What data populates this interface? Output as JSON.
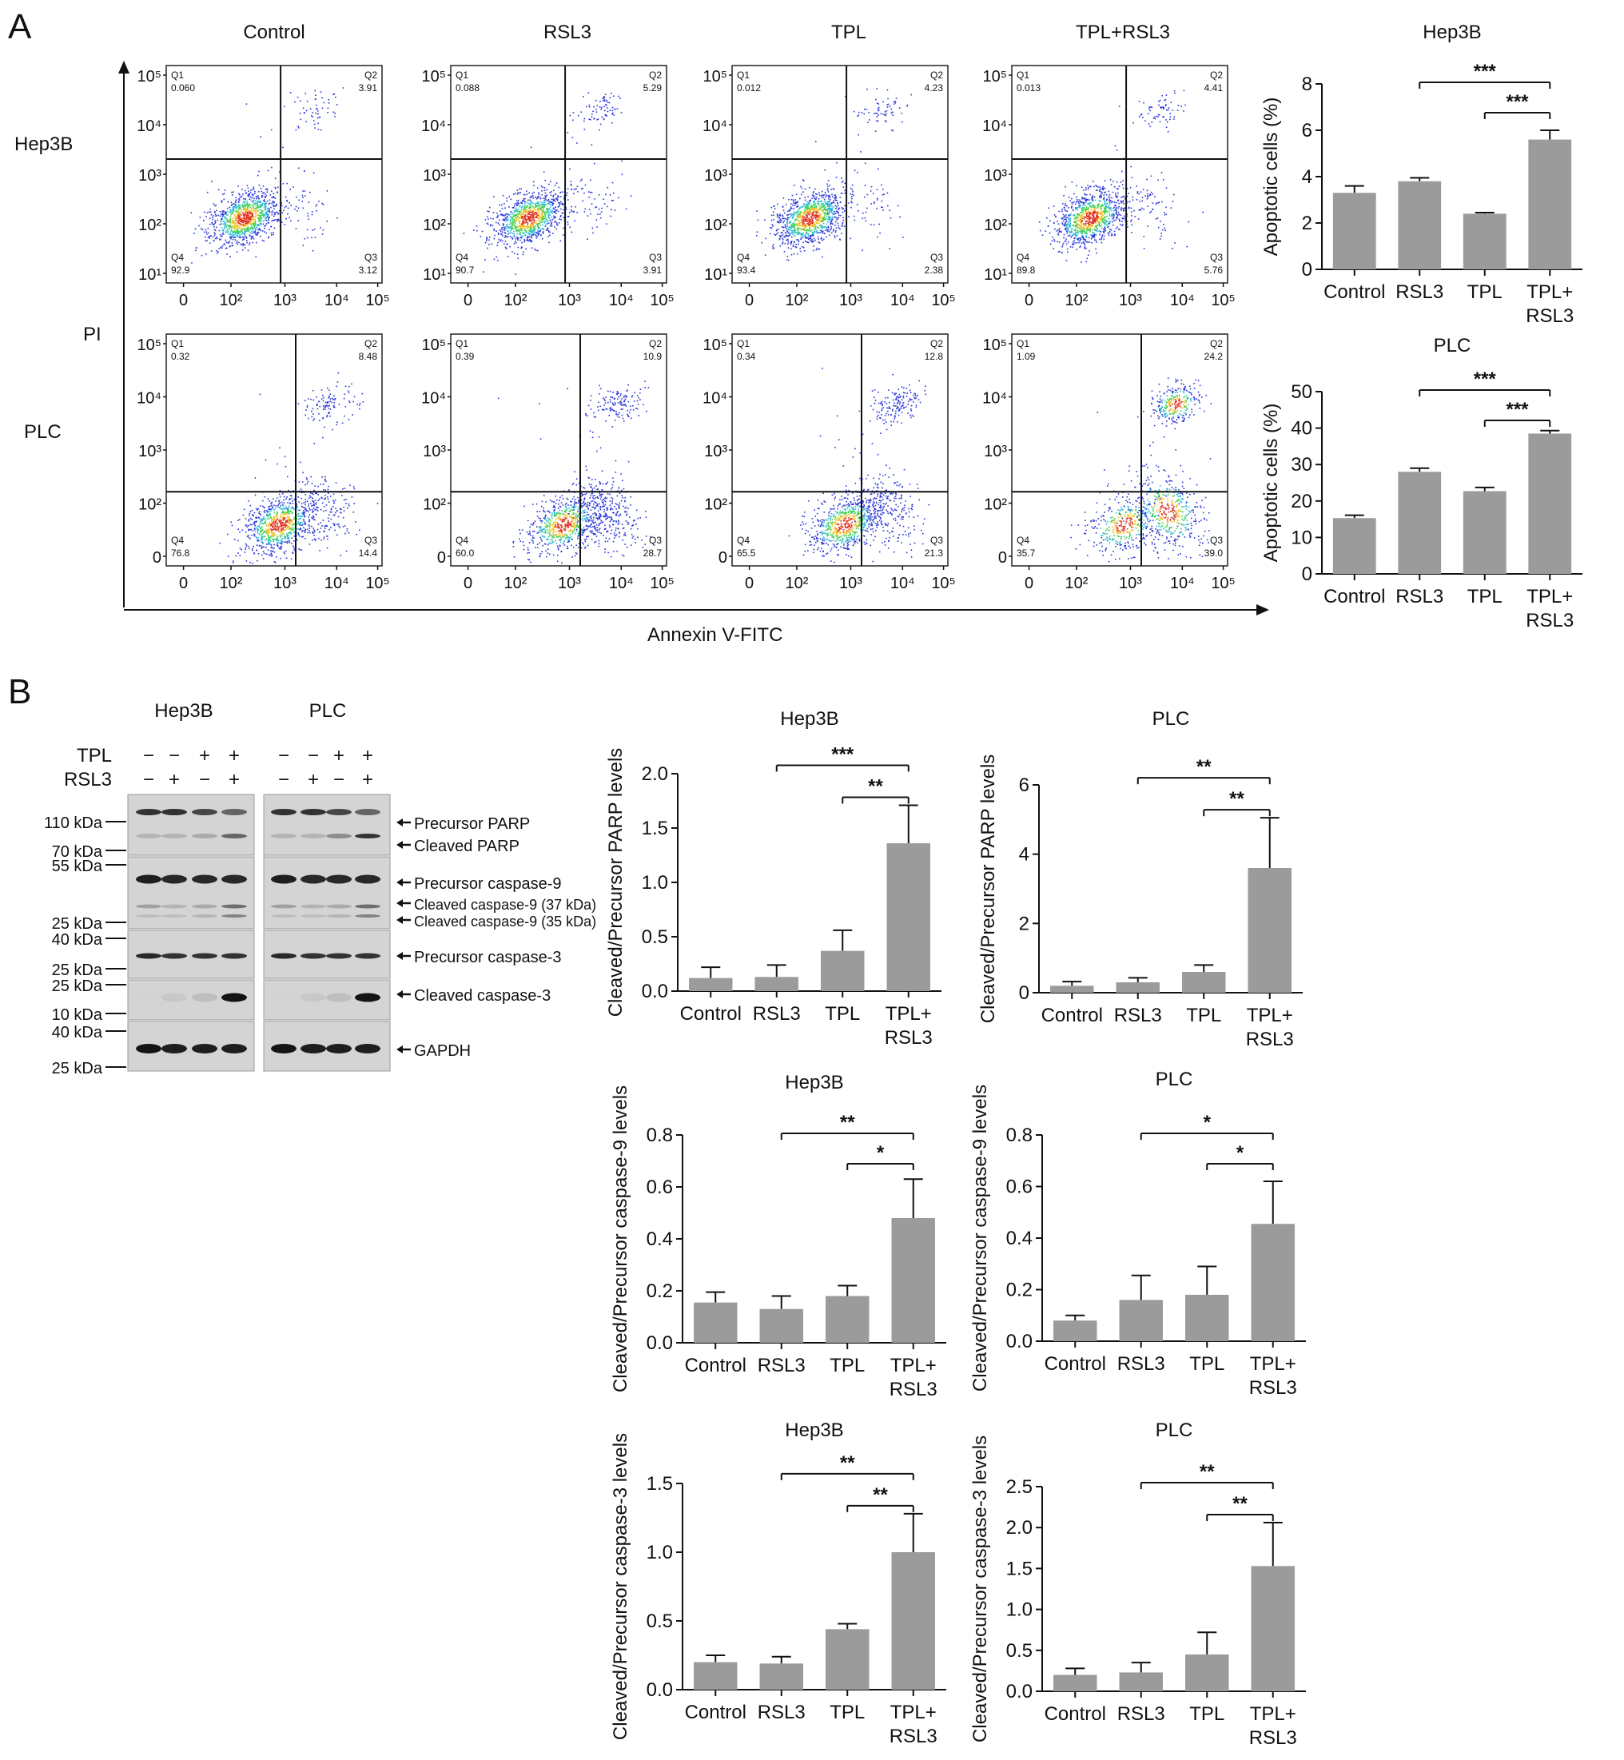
{
  "panel_a": {
    "letter": "A",
    "y_axis_label": "PI",
    "x_axis_label": "Annexin V-FITC",
    "columns": [
      "Control",
      "RSL3",
      "TPL",
      "TPL+RSL3"
    ],
    "rows": [
      "Hep3B",
      "PLC"
    ],
    "flow": {
      "Hep3B": [
        {
          "condition": "Control",
          "Q1": "0.060",
          "Q2": "3.91",
          "Q3": "3.12",
          "Q4": "92.9"
        },
        {
          "condition": "RSL3",
          "Q1": "0.088",
          "Q2": "5.29",
          "Q3": "3.91",
          "Q4": "90.7"
        },
        {
          "condition": "TPL",
          "Q1": "0.012",
          "Q2": "4.23",
          "Q3": "2.38",
          "Q4": "93.4"
        },
        {
          "condition": "TPL+RSL3",
          "Q1": "0.013",
          "Q2": "4.41",
          "Q3": "5.76",
          "Q4": "89.8"
        }
      ],
      "PLC": [
        {
          "condition": "Control",
          "Q1": "0.32",
          "Q2": "8.48",
          "Q3": "14.4",
          "Q4": "76.8"
        },
        {
          "condition": "RSL3",
          "Q1": "0.39",
          "Q2": "10.9",
          "Q3": "28.7",
          "Q4": "60.0"
        },
        {
          "condition": "TPL",
          "Q1": "0.34",
          "Q2": "12.8",
          "Q3": "21.3",
          "Q4": "65.5"
        },
        {
          "condition": "TPL+RSL3",
          "Q1": "1.09",
          "Q2": "24.2",
          "Q3": "39.0",
          "Q4": "35.7"
        }
      ]
    },
    "flow_axis_ticks_hep3b": {
      "x": [
        "0",
        "10²",
        "10³",
        "10⁴",
        "10⁵"
      ],
      "y": [
        "10¹",
        "10²",
        "10³",
        "10⁴",
        "10⁵"
      ]
    },
    "flow_axis_ticks_plc": {
      "x": [
        "0",
        "10²",
        "10³",
        "10⁴",
        "10⁵"
      ],
      "y": [
        "0",
        "10²",
        "10³",
        "10⁴",
        "10⁵"
      ]
    },
    "quadrant_names": [
      "Q1",
      "Q2",
      "Q3",
      "Q4"
    ]
  },
  "panel_b": {
    "letter": "B",
    "blot": {
      "cell_lines": [
        "Hep3B",
        "PLC"
      ],
      "treatment_rows": [
        {
          "name": "TPL",
          "signs": [
            "−",
            "−",
            "+",
            "+"
          ]
        },
        {
          "name": "RSL3",
          "signs": [
            "−",
            "+",
            "−",
            "+"
          ]
        }
      ],
      "markers": [
        "110 kDa",
        "70 kDa",
        "55 kDa",
        "25 kDa",
        "40 kDa",
        "25 kDa",
        "25 kDa",
        "10 kDa",
        "40 kDa",
        "25 kDa"
      ],
      "band_labels": [
        "Precursor PARP",
        "Cleaved PARP",
        "Precursor caspase-9",
        "Cleaved caspase-9 (37 kDa)",
        "Cleaved caspase-9 (35 kDa)",
        "Precursor caspase-3",
        "Cleaved caspase-3",
        "GAPDH"
      ]
    }
  },
  "chart_data": [
    {
      "type": "bar",
      "id": "a-hep3b",
      "title": "Hep3B",
      "ylabel": "Apoptotic cells (%)",
      "categories": [
        "Control",
        "RSL3",
        "TPL",
        "TPL+\nRSL3"
      ],
      "values": [
        3.3,
        3.8,
        2.4,
        5.6
      ],
      "errors": [
        0.3,
        0.15,
        0.05,
        0.4
      ],
      "ylim": [
        0,
        8
      ],
      "yticks": [
        "0",
        "2",
        "4",
        "6",
        "8"
      ],
      "significance": [
        {
          "from": 1,
          "to": 3,
          "label": "***"
        },
        {
          "from": 2,
          "to": 3,
          "label": "***"
        }
      ]
    },
    {
      "type": "bar",
      "id": "a-plc",
      "title": "PLC",
      "ylabel": "Apoptotic cells (%)",
      "categories": [
        "Control",
        "RSL3",
        "TPL",
        "TPL+\nRSL3"
      ],
      "values": [
        15.3,
        28.0,
        22.7,
        38.5
      ],
      "errors": [
        0.8,
        1.0,
        1.0,
        0.8
      ],
      "ylim": [
        0,
        50
      ],
      "yticks": [
        "0",
        "10",
        "20",
        "30",
        "40",
        "50"
      ],
      "significance": [
        {
          "from": 1,
          "to": 3,
          "label": "***"
        },
        {
          "from": 2,
          "to": 3,
          "label": "***"
        }
      ]
    },
    {
      "type": "bar",
      "id": "b-parp-hep3b",
      "title": "Hep3B",
      "ylabel": "Cleaved/Precursor PARP levels",
      "categories": [
        "Control",
        "RSL3",
        "TPL",
        "TPL+\nRSL3"
      ],
      "values": [
        0.12,
        0.13,
        0.37,
        1.36
      ],
      "errors": [
        0.1,
        0.11,
        0.19,
        0.35
      ],
      "ylim": [
        0,
        2.0
      ],
      "yticks": [
        "0.0",
        "0.5",
        "1.0",
        "1.5",
        "2.0"
      ],
      "significance": [
        {
          "from": 1,
          "to": 3,
          "label": "***"
        },
        {
          "from": 2,
          "to": 3,
          "label": "**"
        }
      ]
    },
    {
      "type": "bar",
      "id": "b-parp-plc",
      "title": "PLC",
      "ylabel": "Cleaved/Precursor PARP levels",
      "categories": [
        "Control",
        "RSL3",
        "TPL",
        "TPL+\nRSL3"
      ],
      "values": [
        0.2,
        0.3,
        0.6,
        3.6
      ],
      "errors": [
        0.12,
        0.13,
        0.2,
        1.45
      ],
      "ylim": [
        0,
        6
      ],
      "yticks": [
        "0",
        "2",
        "4",
        "6"
      ],
      "significance": [
        {
          "from": 1,
          "to": 3,
          "label": "**"
        },
        {
          "from": 2,
          "to": 3,
          "label": "**"
        }
      ]
    },
    {
      "type": "bar",
      "id": "b-c9-hep3b",
      "title": "Hep3B",
      "ylabel": "Cleaved/Precursor caspase-9 levels",
      "categories": [
        "Control",
        "RSL3",
        "TPL",
        "TPL+\nRSL3"
      ],
      "values": [
        0.155,
        0.13,
        0.18,
        0.48
      ],
      "errors": [
        0.04,
        0.05,
        0.04,
        0.15
      ],
      "ylim": [
        0,
        0.8
      ],
      "yticks": [
        "0.0",
        "0.2",
        "0.4",
        "0.6",
        "0.8"
      ],
      "significance": [
        {
          "from": 1,
          "to": 3,
          "label": "**"
        },
        {
          "from": 2,
          "to": 3,
          "label": "*"
        }
      ]
    },
    {
      "type": "bar",
      "id": "b-c9-plc",
      "title": "PLC",
      "ylabel": "Cleaved/Precursor caspase-9 levels",
      "categories": [
        "Control",
        "RSL3",
        "TPL",
        "TPL+\nRSL3"
      ],
      "values": [
        0.08,
        0.16,
        0.18,
        0.455
      ],
      "errors": [
        0.02,
        0.095,
        0.11,
        0.165
      ],
      "ylim": [
        0,
        0.8
      ],
      "yticks": [
        "0.0",
        "0.2",
        "0.4",
        "0.6",
        "0.8"
      ],
      "significance": [
        {
          "from": 1,
          "to": 3,
          "label": "*"
        },
        {
          "from": 2,
          "to": 3,
          "label": "*"
        }
      ]
    },
    {
      "type": "bar",
      "id": "b-c3-hep3b",
      "title": "Hep3B",
      "ylabel": "Cleaved/Precursor caspase-3 levels",
      "categories": [
        "Control",
        "RSL3",
        "TPL",
        "TPL+\nRSL3"
      ],
      "values": [
        0.2,
        0.19,
        0.44,
        1.0
      ],
      "errors": [
        0.05,
        0.05,
        0.04,
        0.28
      ],
      "ylim": [
        0,
        1.5
      ],
      "yticks": [
        "0.0",
        "0.5",
        "1.0",
        "1.5"
      ],
      "significance": [
        {
          "from": 1,
          "to": 3,
          "label": "**"
        },
        {
          "from": 2,
          "to": 3,
          "label": "**"
        }
      ]
    },
    {
      "type": "bar",
      "id": "b-c3-plc",
      "title": "PLC",
      "ylabel": "Cleaved/Precursor caspase-3 levels",
      "categories": [
        "Control",
        "RSL3",
        "TPL",
        "TPL+\nRSL3"
      ],
      "values": [
        0.2,
        0.23,
        0.45,
        1.53
      ],
      "errors": [
        0.08,
        0.12,
        0.27,
        0.53
      ],
      "ylim": [
        0,
        2.5
      ],
      "yticks": [
        "0.0",
        "0.5",
        "1.0",
        "1.5",
        "2.0",
        "2.5"
      ],
      "significance": [
        {
          "from": 1,
          "to": 3,
          "label": "**"
        },
        {
          "from": 2,
          "to": 3,
          "label": "**"
        }
      ]
    }
  ]
}
